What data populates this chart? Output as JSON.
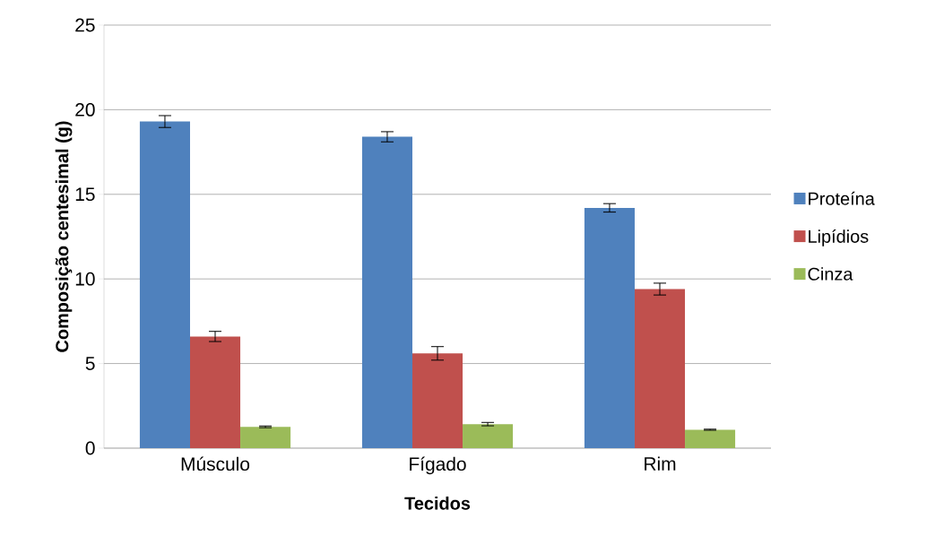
{
  "chart_data": {
    "type": "bar",
    "xlabel": "Tecidos",
    "ylabel": "Composição centesimal (g)",
    "categories": [
      "Músculo",
      "Fígado",
      "Rim"
    ],
    "series": [
      {
        "name": "Proteína",
        "color": "#4f81bd",
        "values": [
          19.3,
          18.4,
          14.2
        ],
        "errors": [
          0.35,
          0.3,
          0.25
        ]
      },
      {
        "name": "Lipídios",
        "color": "#c0504d",
        "values": [
          6.6,
          5.6,
          9.4
        ],
        "errors": [
          0.3,
          0.4,
          0.35
        ]
      },
      {
        "name": "Cinza",
        "color": "#9bbb59",
        "values": [
          1.26,
          1.42,
          1.09
        ],
        "errors": [
          0.05,
          0.1,
          0.03
        ]
      }
    ],
    "ylim": [
      0,
      25
    ],
    "yticks": [
      0,
      5,
      10,
      15,
      20,
      25
    ],
    "grid": "y",
    "legend": "right"
  }
}
